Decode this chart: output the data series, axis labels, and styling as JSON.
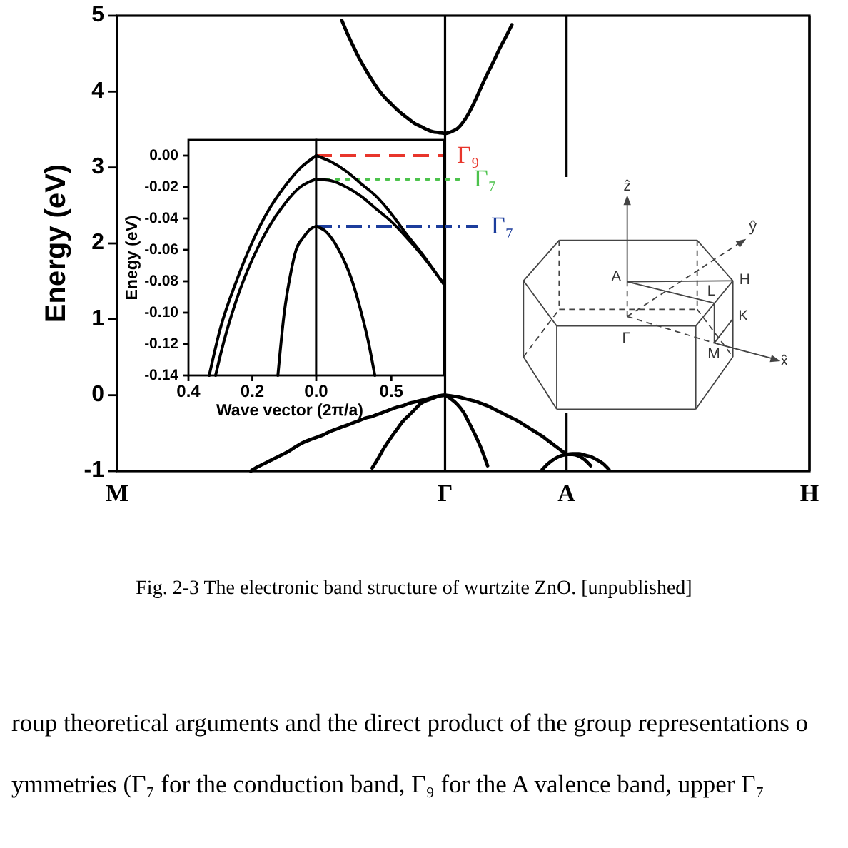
{
  "chart_data": [
    {
      "type": "line",
      "ylabel": "Energy (eV)",
      "categories": [
        "M",
        null,
        null,
        null,
        null,
        null,
        null,
        null,
        null,
        null,
        null,
        null,
        null,
        null,
        null,
        null,
        null,
        null,
        null,
        null,
        null,
        null,
        null,
        null,
        null,
        null,
        null,
        null,
        null,
        null,
        null,
        null,
        null,
        null,
        null,
        null,
        null,
        null,
        null,
        null,
        null,
        null,
        null,
        null,
        null,
        null,
        null,
        null,
        null,
        null,
        null,
        null,
        null,
        null,
        "Γ",
        null,
        null,
        null,
        null,
        null,
        null,
        null,
        null,
        null,
        null,
        null,
        null,
        null,
        null,
        null,
        null,
        null,
        null,
        null,
        "A",
        null,
        null,
        null,
        null,
        null,
        null,
        null,
        null,
        null,
        null,
        null,
        null,
        null,
        null,
        null,
        null,
        null,
        null,
        null,
        null,
        null,
        null,
        null,
        null,
        null,
        null,
        null,
        null,
        null,
        null,
        null,
        null,
        null,
        null,
        null,
        null,
        null,
        null,
        null,
        "H"
      ],
      "ylim": [
        -1,
        5
      ],
      "yticks": [
        -1,
        0,
        1,
        2,
        3,
        4,
        5
      ],
      "grid": "x",
      "series": [
        {
          "color": "#000000",
          "values": [
            null,
            null,
            null,
            null,
            null,
            null,
            null,
            null,
            null,
            null,
            null,
            null,
            null,
            null,
            null,
            null,
            null,
            null,
            null,
            null,
            null,
            null,
            null,
            null,
            null,
            null,
            null,
            null,
            null,
            null,
            null,
            null,
            null,
            null,
            null,
            null,
            null,
            4.94,
            4.75,
            4.58,
            4.42,
            4.28,
            4.15,
            4.03,
            3.93,
            3.85,
            3.77,
            3.7,
            3.64,
            3.58,
            3.54,
            3.5,
            3.47,
            3.46,
            3.45,
            3.47,
            3.51,
            3.6,
            3.73,
            3.89,
            4.07,
            4.24,
            4.4,
            4.57,
            4.72,
            4.88,
            null,
            null,
            null,
            null,
            null,
            null,
            null,
            null,
            null,
            null,
            null,
            null,
            null,
            null,
            null,
            null,
            null,
            null,
            null,
            null,
            null,
            null,
            null,
            null,
            null,
            null,
            null,
            null,
            null,
            null,
            null,
            null,
            null,
            null,
            null,
            null,
            null,
            null,
            null,
            null,
            null,
            null,
            null,
            null,
            null,
            null,
            null,
            null,
            null
          ]
        },
        {
          "color": "#000000",
          "values": [
            null,
            null,
            null,
            null,
            null,
            null,
            null,
            null,
            null,
            null,
            null,
            null,
            null,
            null,
            null,
            null,
            null,
            null,
            null,
            null,
            null,
            null,
            -1,
            -0.95,
            -0.91,
            -0.87,
            -0.83,
            -0.79,
            -0.75,
            -0.7,
            -0.65,
            -0.61,
            -0.58,
            -0.55,
            -0.52,
            -0.48,
            -0.45,
            -0.42,
            -0.39,
            -0.36,
            -0.33,
            -0.3,
            -0.28,
            -0.25,
            -0.22,
            -0.19,
            -0.16,
            -0.14,
            -0.11,
            -0.09,
            -0.07,
            -0.05,
            -0.03,
            -0.01,
            0,
            null,
            null,
            null,
            null,
            null,
            null,
            null,
            null,
            null,
            null,
            null,
            null,
            null,
            null,
            null,
            null,
            null,
            null,
            null,
            null,
            null,
            null,
            null,
            null,
            null,
            null,
            null,
            null,
            null,
            null,
            null,
            null,
            null,
            null,
            null,
            null,
            null,
            null,
            null,
            null,
            null,
            null,
            null,
            null,
            null,
            null,
            null,
            null,
            null,
            null,
            null,
            null,
            null,
            null,
            null,
            null,
            null,
            null,
            null,
            null
          ]
        },
        {
          "color": "#000000",
          "values": [
            null,
            null,
            null,
            null,
            null,
            null,
            null,
            null,
            null,
            null,
            null,
            null,
            null,
            null,
            null,
            null,
            null,
            null,
            null,
            null,
            null,
            null,
            null,
            null,
            null,
            null,
            null,
            null,
            null,
            null,
            null,
            null,
            null,
            null,
            null,
            null,
            null,
            null,
            null,
            null,
            null,
            null,
            -0.96,
            -0.83,
            -0.69,
            -0.57,
            -0.46,
            -0.35,
            -0.27,
            -0.19,
            -0.11,
            -0.07,
            -0.04,
            -0.01,
            0,
            null,
            null,
            null,
            null,
            null,
            null,
            null,
            null,
            null,
            null,
            null,
            null,
            null,
            null,
            null,
            null,
            null,
            null,
            null,
            null,
            null,
            null,
            null,
            null,
            null,
            null,
            null,
            null,
            null,
            null,
            null,
            null,
            null,
            null,
            null,
            null,
            null,
            null,
            null,
            null,
            null,
            null,
            null,
            null,
            null,
            null,
            null,
            null,
            null,
            null,
            null,
            null,
            null,
            null,
            null,
            null,
            null,
            null,
            null,
            null
          ]
        },
        {
          "color": "#000000",
          "values": [
            null,
            null,
            null,
            null,
            null,
            null,
            null,
            null,
            null,
            null,
            null,
            null,
            null,
            null,
            null,
            null,
            null,
            null,
            null,
            null,
            null,
            null,
            null,
            null,
            null,
            null,
            null,
            null,
            null,
            null,
            null,
            null,
            null,
            null,
            null,
            null,
            null,
            null,
            null,
            null,
            null,
            null,
            null,
            null,
            null,
            null,
            null,
            null,
            null,
            null,
            null,
            null,
            null,
            null,
            0,
            -0.05,
            -0.12,
            -0.22,
            -0.37,
            -0.53,
            -0.71,
            -0.93,
            null,
            null,
            null,
            null,
            null,
            null,
            null,
            null,
            null,
            null,
            null,
            null,
            null,
            null,
            null,
            null,
            null,
            null,
            null,
            null,
            null,
            null,
            null,
            null,
            null,
            null,
            null,
            null,
            null,
            null,
            null,
            null,
            null,
            null,
            null,
            null,
            null,
            null,
            null,
            null,
            null,
            null,
            null,
            null,
            null,
            null,
            null,
            null,
            null,
            null,
            null,
            null,
            null
          ]
        },
        {
          "color": "#000000",
          "values": [
            null,
            null,
            null,
            null,
            null,
            null,
            null,
            null,
            null,
            null,
            null,
            null,
            null,
            null,
            null,
            null,
            null,
            null,
            null,
            null,
            null,
            null,
            null,
            null,
            null,
            null,
            null,
            null,
            null,
            null,
            null,
            null,
            null,
            null,
            null,
            null,
            null,
            null,
            null,
            null,
            null,
            null,
            null,
            null,
            null,
            null,
            null,
            null,
            null,
            null,
            null,
            null,
            null,
            null,
            0,
            -0.01,
            -0.02,
            -0.04,
            -0.06,
            -0.08,
            -0.11,
            -0.14,
            -0.18,
            -0.22,
            -0.26,
            -0.3,
            -0.34,
            -0.39,
            -0.44,
            -0.49,
            -0.54,
            -0.6,
            -0.66,
            -0.72,
            -0.78,
            null,
            null,
            null,
            null,
            null,
            null,
            null,
            null,
            null,
            null,
            null,
            null,
            null,
            null,
            null,
            null,
            null,
            null,
            null,
            null,
            null,
            null,
            null,
            null,
            null,
            null,
            null,
            null,
            null,
            null,
            null,
            null,
            null,
            null,
            null,
            null,
            null,
            null,
            null,
            null
          ]
        },
        {
          "color": "#000000",
          "values": [
            null,
            null,
            null,
            null,
            null,
            null,
            null,
            null,
            null,
            null,
            null,
            null,
            null,
            null,
            null,
            null,
            null,
            null,
            null,
            null,
            null,
            null,
            null,
            null,
            null,
            null,
            null,
            null,
            null,
            null,
            null,
            null,
            null,
            null,
            null,
            null,
            null,
            null,
            null,
            null,
            null,
            null,
            null,
            null,
            null,
            null,
            null,
            null,
            null,
            null,
            null,
            null,
            null,
            null,
            null,
            null,
            null,
            null,
            null,
            null,
            null,
            null,
            null,
            null,
            null,
            null,
            null,
            null,
            null,
            null,
            -0.98,
            -0.9,
            -0.84,
            -0.8,
            -0.78,
            null,
            null,
            null,
            null,
            null,
            null,
            null,
            null,
            null,
            null,
            null,
            null,
            null,
            null,
            null,
            null,
            null,
            null,
            null,
            null,
            null,
            null,
            null,
            null,
            null,
            null,
            null,
            null,
            null,
            null,
            null,
            null,
            null,
            null,
            null,
            null,
            null,
            null,
            null,
            null
          ]
        },
        {
          "color": "#000000",
          "values": [
            null,
            null,
            null,
            null,
            null,
            null,
            null,
            null,
            null,
            null,
            null,
            null,
            null,
            null,
            null,
            null,
            null,
            null,
            null,
            null,
            null,
            null,
            null,
            null,
            null,
            null,
            null,
            null,
            null,
            null,
            null,
            null,
            null,
            null,
            null,
            null,
            null,
            null,
            null,
            null,
            null,
            null,
            null,
            null,
            null,
            null,
            null,
            null,
            null,
            null,
            null,
            null,
            null,
            null,
            null,
            null,
            null,
            null,
            null,
            null,
            null,
            null,
            null,
            null,
            null,
            null,
            null,
            null,
            null,
            null,
            null,
            null,
            null,
            null,
            -0.78,
            -0.78,
            -0.8,
            -0.85,
            -0.93,
            null,
            null,
            null,
            null,
            null,
            null,
            null,
            null,
            null,
            null,
            null,
            null,
            null,
            null,
            null,
            null,
            null,
            null,
            null,
            null,
            null,
            null,
            null,
            null,
            null,
            null,
            null,
            null,
            null,
            null,
            null,
            null,
            null,
            null,
            null,
            null
          ]
        },
        {
          "color": "#000000",
          "values": [
            null,
            null,
            null,
            null,
            null,
            null,
            null,
            null,
            null,
            null,
            null,
            null,
            null,
            null,
            null,
            null,
            null,
            null,
            null,
            null,
            null,
            null,
            null,
            null,
            null,
            null,
            null,
            null,
            null,
            null,
            null,
            null,
            null,
            null,
            null,
            null,
            null,
            null,
            null,
            null,
            null,
            null,
            null,
            null,
            null,
            null,
            null,
            null,
            null,
            null,
            null,
            null,
            null,
            null,
            null,
            null,
            null,
            null,
            null,
            null,
            null,
            null,
            null,
            null,
            null,
            null,
            null,
            null,
            null,
            null,
            null,
            null,
            null,
            null,
            -0.78,
            -0.77,
            -0.77,
            -0.79,
            -0.81,
            -0.85,
            -0.9,
            -0.98,
            null,
            null,
            null,
            null,
            null,
            null,
            null,
            null,
            null,
            null,
            null,
            null,
            null,
            null,
            null,
            null,
            null,
            null,
            null,
            null,
            null,
            null,
            null,
            null,
            null,
            null,
            null,
            null,
            null,
            null,
            null,
            null,
            null
          ]
        }
      ],
      "annotations": [
        "Fig. 2-3 The electronic band structure of wurtzite ZnO. [unpublished]",
        "roup theoretical arguments and the direct product of the group representations o",
        "ymmetries (Γ₇ for the conduction band, Γ₉ for the A valence band, upper Γ₇"
      ]
    },
    {
      "type": "line",
      "xlabel": "Wave vector (2π/a)",
      "ylabel": "Enegy (eV)",
      "xlim": [
        0.4,
        0
      ],
      "xticks": [
        0.4,
        0.2
      ],
      "ylim": [
        -0.14,
        0.01
      ],
      "yticks": [
        {
          "value": 0,
          "label": "0.00"
        },
        {
          "value": -0.02,
          "label": "-0.02"
        },
        {
          "value": -0.04,
          "label": "-0.04"
        },
        {
          "value": -0.06,
          "label": "-0.06"
        },
        {
          "value": -0.08,
          "label": "-0.08"
        },
        {
          "value": -0.1,
          "label": "-0.10"
        },
        {
          "value": -0.12,
          "label": "-0.12"
        },
        {
          "value": -0.14,
          "label": "-0.14"
        }
      ],
      "series": [
        {
          "color": "#000000",
          "x": [
            0.335,
            0.3,
            0.25,
            0.2,
            0.15,
            0.1,
            0.05,
            0
          ],
          "values": [
            -0.14,
            -0.11,
            -0.08,
            -0.055,
            -0.035,
            -0.02,
            -0.008,
            0
          ]
        },
        {
          "color": "#000000",
          "x": [
            0.315,
            0.3,
            0.25,
            0.2,
            0.15,
            0.1,
            0.05,
            0
          ],
          "values": [
            -0.14,
            -0.127,
            -0.092,
            -0.066,
            -0.046,
            -0.031,
            -0.02,
            -0.015
          ]
        },
        {
          "color": "#000000",
          "x": [
            0.12,
            0.1,
            0.08,
            0.063,
            0.04,
            0.02,
            0
          ],
          "values": [
            -0.14,
            -0.1,
            -0.075,
            -0.06,
            -0.052,
            -0.047,
            -0.045
          ]
        }
      ]
    },
    {
      "type": "line",
      "xlim": [
        0,
        0.85
      ],
      "xticks": [
        {
          "value": 0,
          "label": "0.0"
        },
        0.5
      ],
      "ylim": [
        -0.14,
        0.01
      ],
      "tick_labels": "x",
      "ref_lines": [
        {
          "axis": "y",
          "value": 0,
          "label": "Γ₉",
          "color": "#e8352b",
          "line_style": "dashed"
        },
        {
          "axis": "y",
          "value": -0.015,
          "label": "Γ₇",
          "color": "#4cc24c",
          "line_style": "dotted"
        },
        {
          "axis": "y",
          "value": -0.045,
          "label": "Γ₇",
          "color": "#1c3d9c",
          "line_style": "dashdot"
        }
      ],
      "series": [
        {
          "color": "#000000",
          "x": [
            0,
            0.1,
            0.2,
            0.3,
            0.4,
            0.5,
            0.6,
            0.7,
            0.85
          ],
          "values": [
            0,
            -0.004,
            -0.01,
            -0.018,
            -0.026,
            -0.037,
            -0.05,
            -0.062,
            -0.082
          ]
        },
        {
          "color": "#000000",
          "x": [
            0,
            0.1,
            0.2,
            0.3,
            0.4,
            0.5,
            0.6,
            0.7,
            0.85
          ],
          "values": [
            -0.015,
            -0.016,
            -0.02,
            -0.026,
            -0.034,
            -0.042,
            -0.052,
            -0.063,
            -0.082
          ]
        },
        {
          "color": "#000000",
          "x": [
            0,
            0.06,
            0.15,
            0.24,
            0.3,
            0.35,
            0.39
          ],
          "values": [
            -0.045,
            -0.048,
            -0.06,
            -0.08,
            -0.1,
            -0.12,
            -0.14
          ]
        }
      ]
    },
    {
      "type": "other",
      "annotations": [
        "ẑ",
        "ŷ",
        "x̂",
        "A",
        "H",
        "L",
        "K",
        "Γ",
        "M"
      ]
    }
  ]
}
